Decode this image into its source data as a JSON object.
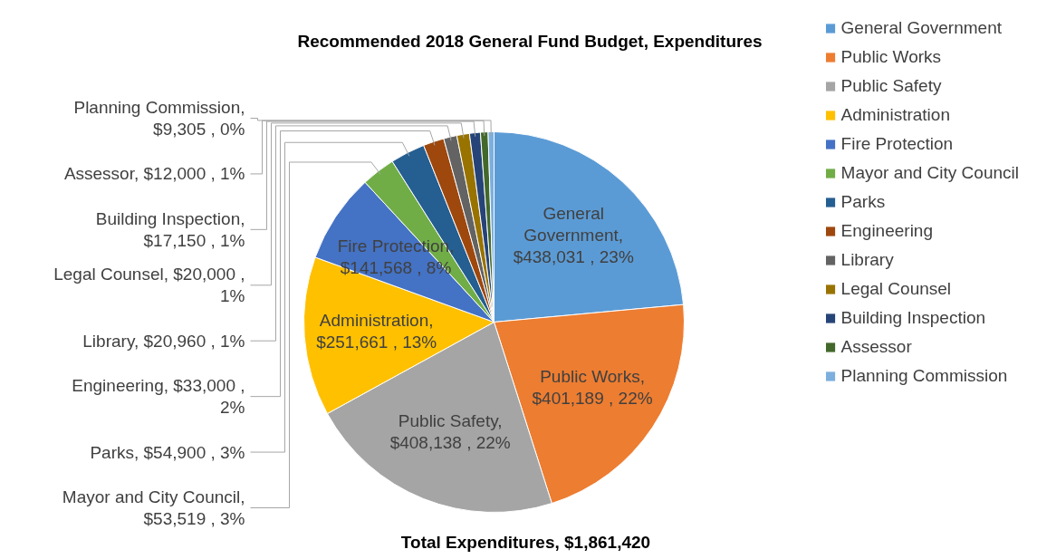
{
  "chart_data": {
    "type": "pie",
    "title": "Recommended 2018 General Fund Budget, Expenditures",
    "categories": [
      "General Government",
      "Public Works",
      "Public Safety",
      "Administration",
      "Fire Protection",
      "Mayor and City Council",
      "Parks",
      "Engineering",
      "Library",
      "Legal Counsel",
      "Building Inspection",
      "Assessor",
      "Planning Commission"
    ],
    "values": [
      438031,
      401189,
      408138,
      251661,
      141568,
      53519,
      54900,
      33000,
      20960,
      20000,
      17150,
      12000,
      9305
    ],
    "colors": [
      "#5b9bd5",
      "#ed7d31",
      "#a5a5a5",
      "#ffc000",
      "#4472c4",
      "#70ad47",
      "#255e91",
      "#9e480e",
      "#636363",
      "#997300",
      "#264478",
      "#43682b",
      "#7cafdd"
    ],
    "value_labels": [
      "General Government, $438,031 , 23%",
      "Public Works, $401,189 , 22%",
      "Public Safety, $408,138 , 22%",
      "Administration, $251,661 , 13%",
      "Fire Protection, $141,568 , 8%",
      "Mayor and City Council, $53,519 , 3%",
      "Parks, $54,900 , 3%",
      "Engineering, $33,000 , 2%",
      "Library, $20,960 , 1%",
      "Legal Counsel, $20,000 , 1%",
      "Building Inspection, $17,150 , 1%",
      "Assessor, $12,000 , 1%",
      "Planning Commission, $9,305 , 0%"
    ],
    "legend": "right",
    "annotations": [
      "Total Expenditures, $1,861,420"
    ]
  }
}
